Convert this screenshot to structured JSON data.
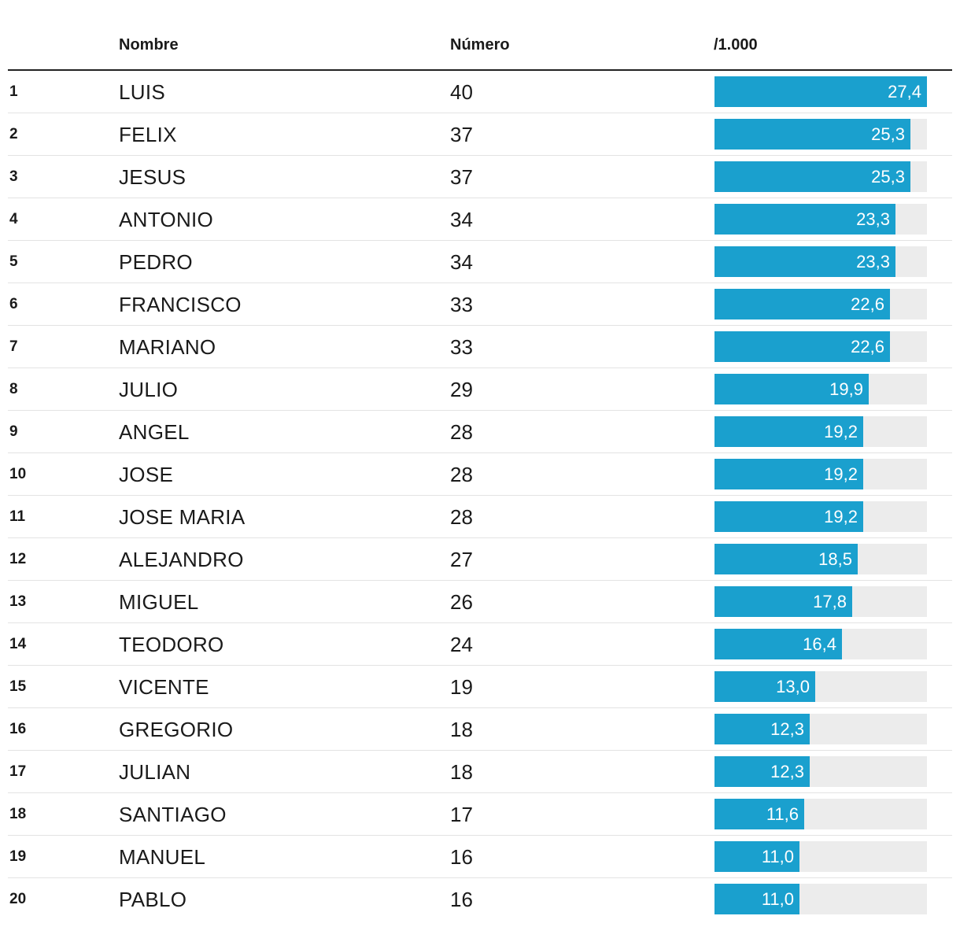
{
  "headers": {
    "rank": "",
    "name": "Nombre",
    "number": "Número",
    "rate": "/1.000"
  },
  "colors": {
    "bar": "#1aa0ce",
    "track": "#ececec",
    "text": "#1a1a1a"
  },
  "chart_data": {
    "type": "bar",
    "orientation": "horizontal",
    "xlim": [
      0,
      27.4
    ],
    "rows": [
      {
        "rank": "1",
        "name": "LUIS",
        "number": "40",
        "value": 27.4,
        "label": "27,4"
      },
      {
        "rank": "2",
        "name": "FELIX",
        "number": "37",
        "value": 25.3,
        "label": "25,3"
      },
      {
        "rank": "3",
        "name": "JESUS",
        "number": "37",
        "value": 25.3,
        "label": "25,3"
      },
      {
        "rank": "4",
        "name": "ANTONIO",
        "number": "34",
        "value": 23.3,
        "label": "23,3"
      },
      {
        "rank": "5",
        "name": "PEDRO",
        "number": "34",
        "value": 23.3,
        "label": "23,3"
      },
      {
        "rank": "6",
        "name": "FRANCISCO",
        "number": "33",
        "value": 22.6,
        "label": "22,6"
      },
      {
        "rank": "7",
        "name": "MARIANO",
        "number": "33",
        "value": 22.6,
        "label": "22,6"
      },
      {
        "rank": "8",
        "name": "JULIO",
        "number": "29",
        "value": 19.9,
        "label": "19,9"
      },
      {
        "rank": "9",
        "name": "ANGEL",
        "number": "28",
        "value": 19.2,
        "label": "19,2"
      },
      {
        "rank": "10",
        "name": "JOSE",
        "number": "28",
        "value": 19.2,
        "label": "19,2"
      },
      {
        "rank": "11",
        "name": "JOSE MARIA",
        "number": "28",
        "value": 19.2,
        "label": "19,2"
      },
      {
        "rank": "12",
        "name": "ALEJANDRO",
        "number": "27",
        "value": 18.5,
        "label": "18,5"
      },
      {
        "rank": "13",
        "name": "MIGUEL",
        "number": "26",
        "value": 17.8,
        "label": "17,8"
      },
      {
        "rank": "14",
        "name": "TEODORO",
        "number": "24",
        "value": 16.4,
        "label": "16,4"
      },
      {
        "rank": "15",
        "name": "VICENTE",
        "number": "19",
        "value": 13.0,
        "label": "13,0"
      },
      {
        "rank": "16",
        "name": "GREGORIO",
        "number": "18",
        "value": 12.3,
        "label": "12,3"
      },
      {
        "rank": "17",
        "name": "JULIAN",
        "number": "18",
        "value": 12.3,
        "label": "12,3"
      },
      {
        "rank": "18",
        "name": "SANTIAGO",
        "number": "17",
        "value": 11.6,
        "label": "11,6"
      },
      {
        "rank": "19",
        "name": "MANUEL",
        "number": "16",
        "value": 11.0,
        "label": "11,0"
      },
      {
        "rank": "20",
        "name": "PABLO",
        "number": "16",
        "value": 11.0,
        "label": "11,0"
      }
    ]
  }
}
